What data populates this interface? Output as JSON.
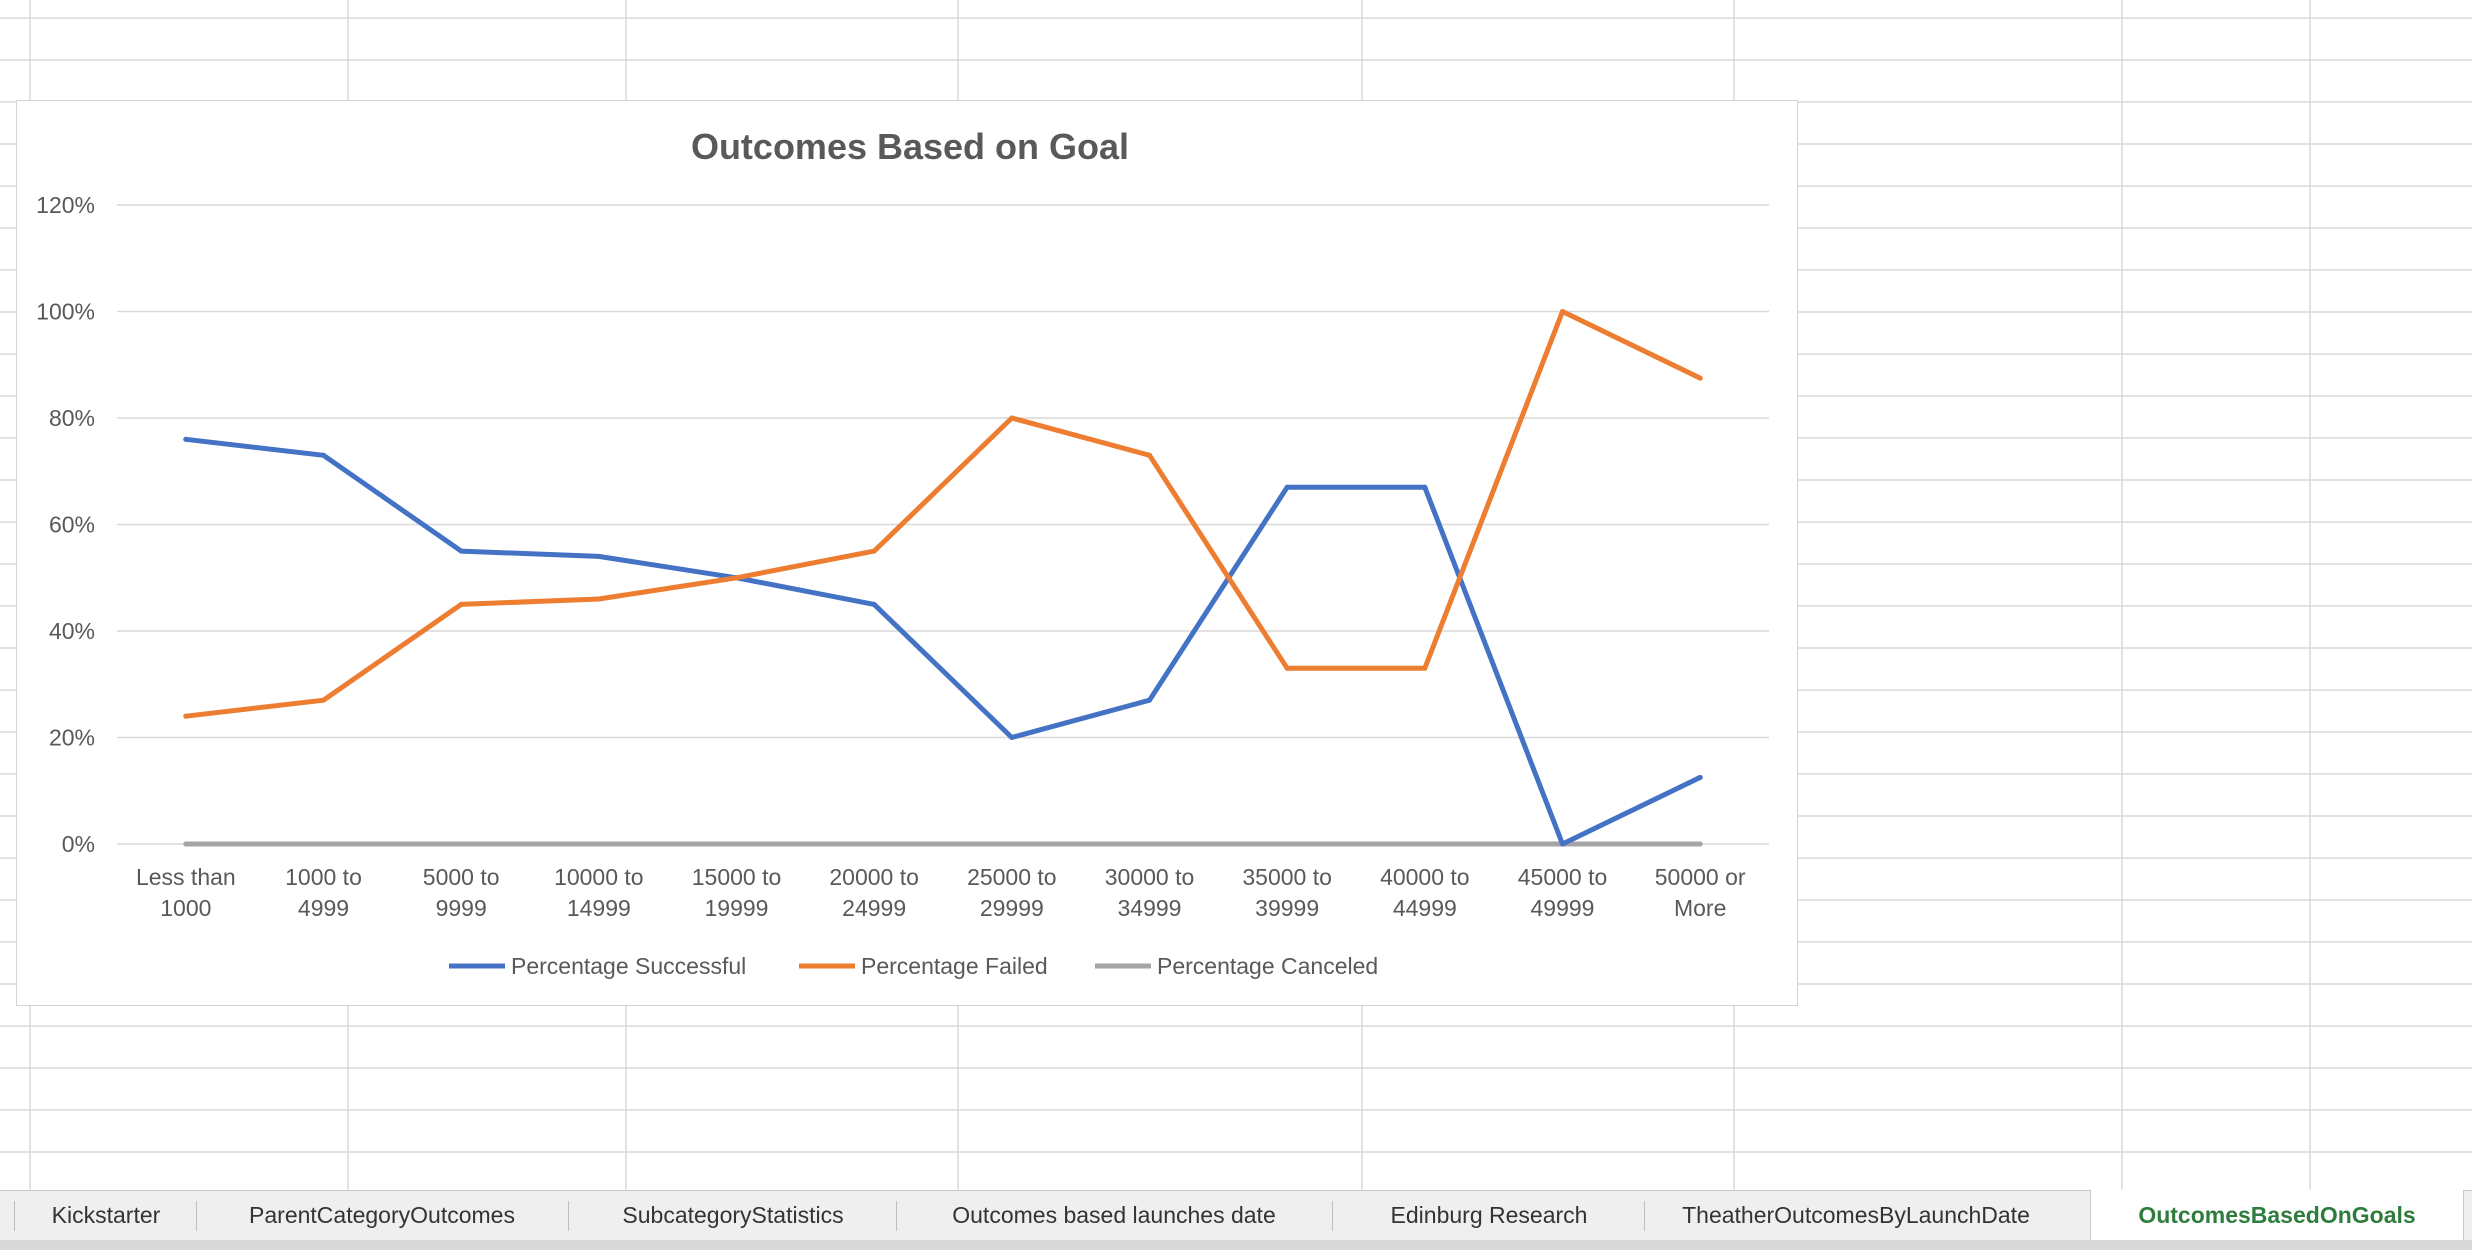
{
  "sheet_tabs": [
    {
      "label": "Kickstarter",
      "active": false
    },
    {
      "label": "ParentCategoryOutcomes",
      "active": false
    },
    {
      "label": "SubcategoryStatistics",
      "active": false
    },
    {
      "label": "Outcomes based launches date",
      "active": false
    },
    {
      "label": "Edinburg Research",
      "active": false
    },
    {
      "label": "TheatherOutcomesByLaunchDate",
      "active": false
    },
    {
      "label": "OutcomesBasedOnGoals",
      "active": true
    }
  ],
  "colors": {
    "successful": "#4472c4",
    "failed": "#ed7d31",
    "canceled": "#a5a5a5",
    "active_tab_text": "#2e7d3c",
    "gridline": "#d9d9d9",
    "axis_text": "#595959"
  },
  "chart_data": {
    "type": "line",
    "title": "Outcomes Based on Goal",
    "categories": [
      "Less than 1000",
      "1000 to 4999",
      "5000 to 9999",
      "10000 to 14999",
      "15000 to 19999",
      "20000 to 24999",
      "25000 to 29999",
      "30000 to 34999",
      "35000 to 39999",
      "40000 to 44999",
      "45000 to 49999",
      "50000 or More"
    ],
    "category_label_lines": [
      [
        "Less than",
        "1000"
      ],
      [
        "1000 to",
        "4999"
      ],
      [
        "5000 to",
        "9999"
      ],
      [
        "10000 to",
        "14999"
      ],
      [
        "15000 to",
        "19999"
      ],
      [
        "20000 to",
        "24999"
      ],
      [
        "25000 to",
        "29999"
      ],
      [
        "30000 to",
        "34999"
      ],
      [
        "35000 to",
        "39999"
      ],
      [
        "40000 to",
        "44999"
      ],
      [
        "45000 to",
        "49999"
      ],
      [
        "50000 or",
        "More"
      ]
    ],
    "series": [
      {
        "name": "Percentage  Successful",
        "color": "#4472c4",
        "values": [
          0.76,
          0.73,
          0.55,
          0.54,
          0.5,
          0.45,
          0.2,
          0.27,
          0.67,
          0.67,
          0.0,
          0.125
        ]
      },
      {
        "name": "Percentage Failed",
        "color": "#ed7d31",
        "values": [
          0.24,
          0.27,
          0.45,
          0.46,
          0.5,
          0.55,
          0.8,
          0.73,
          0.33,
          0.33,
          1.0,
          0.875
        ]
      },
      {
        "name": "Percentage Canceled",
        "color": "#a5a5a5",
        "values": [
          0,
          0,
          0,
          0,
          0,
          0,
          0,
          0,
          0,
          0,
          0,
          0
        ]
      }
    ],
    "ylim": [
      0,
      1.2
    ],
    "yticks": [
      "0%",
      "20%",
      "40%",
      "60%",
      "80%",
      "100%",
      "120%"
    ],
    "ytick_values": [
      0,
      0.2,
      0.4,
      0.6,
      0.8,
      1.0,
      1.2
    ],
    "grid": true,
    "legend_position": "bottom"
  }
}
